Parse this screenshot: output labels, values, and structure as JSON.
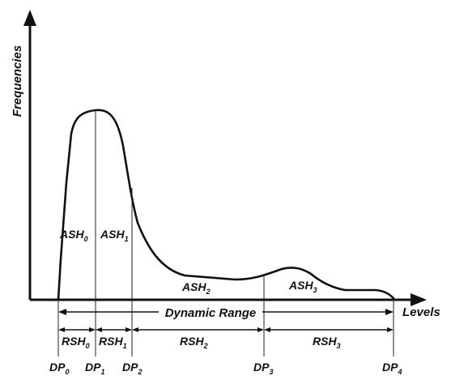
{
  "axes": {
    "y_label": "Frequencies",
    "x_label": "Levels"
  },
  "regions": {
    "ash0": {
      "base": "ASH",
      "sub": "0"
    },
    "ash1": {
      "base": "ASH",
      "sub": "1"
    },
    "ash2": {
      "base": "ASH",
      "sub": "2"
    },
    "ash3": {
      "base": "ASH",
      "sub": "3"
    }
  },
  "dynamic_range": "Dynamic Range",
  "rsh": {
    "rsh0": {
      "base": "RSH",
      "sub": "0"
    },
    "rsh1": {
      "base": "RSH",
      "sub": "1"
    },
    "rsh2": {
      "base": "RSH",
      "sub": "2"
    },
    "rsh3": {
      "base": "RSH",
      "sub": "3"
    }
  },
  "dp": {
    "dp0": {
      "base": "DP",
      "sub": "0"
    },
    "dp1": {
      "base": "DP",
      "sub": "1"
    },
    "dp2": {
      "base": "DP",
      "sub": "2"
    },
    "dp3": {
      "base": "DP",
      "sub": "3"
    },
    "dp4": {
      "base": "DP",
      "sub": "4"
    }
  }
}
